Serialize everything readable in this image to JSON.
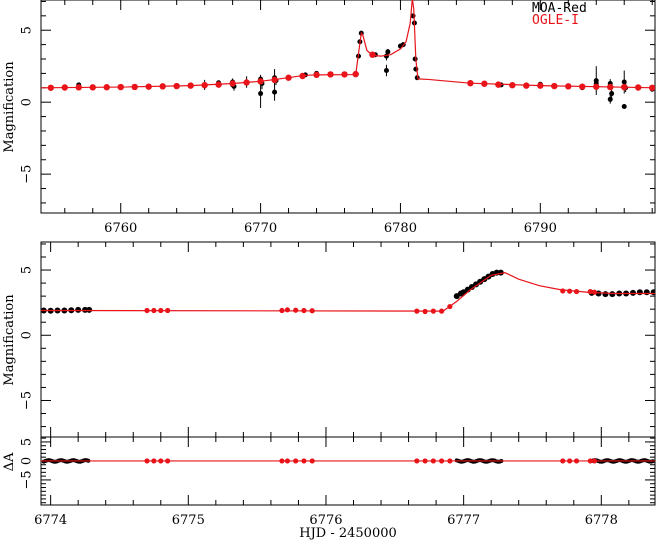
{
  "chart_data": [
    {
      "type": "scatter",
      "panel": "overview",
      "xlim": [
        6754.3,
        6798.2
      ],
      "ylim": [
        -7.7,
        7.1
      ],
      "ylabel": "Magnification",
      "xticks": [
        6760,
        6770,
        6780,
        6790
      ],
      "yticks": [
        -5,
        0,
        5
      ],
      "legend": {
        "placement": "top-right",
        "entries": [
          {
            "name": "MOA-Red",
            "color": "#000000"
          },
          {
            "name": "OGLE-I",
            "color": "#e8141a"
          }
        ]
      },
      "model": [
        [
          6754.3,
          1.0
        ],
        [
          6760,
          1.05
        ],
        [
          6765,
          1.15
        ],
        [
          6768,
          1.3
        ],
        [
          6770,
          1.45
        ],
        [
          6772,
          1.7
        ],
        [
          6773,
          1.85
        ],
        [
          6774,
          1.9
        ],
        [
          6776.8,
          1.92
        ],
        [
          6776.95,
          3.0
        ],
        [
          6777.2,
          4.8
        ],
        [
          6777.3,
          4.7
        ],
        [
          6777.6,
          3.6
        ],
        [
          6778,
          3.25
        ],
        [
          6778.6,
          3.2
        ],
        [
          6779.3,
          3.3
        ],
        [
          6780,
          3.7
        ],
        [
          6780.4,
          4.2
        ],
        [
          6780.7,
          5.5
        ],
        [
          6780.85,
          7.2
        ],
        [
          6780.95,
          6.5
        ],
        [
          6781.1,
          3.0
        ],
        [
          6781.25,
          1.62
        ],
        [
          6782,
          1.58
        ],
        [
          6785,
          1.32
        ],
        [
          6790,
          1.15
        ],
        [
          6798.2,
          1.0
        ]
      ],
      "ogle": [
        [
          6755,
          1.0
        ],
        [
          6756,
          1.02
        ],
        [
          6757,
          1.03
        ],
        [
          6758,
          1.03
        ],
        [
          6759,
          1.04
        ],
        [
          6760,
          1.05
        ],
        [
          6761,
          1.06
        ],
        [
          6762,
          1.08
        ],
        [
          6763,
          1.1
        ],
        [
          6764,
          1.12
        ],
        [
          6765,
          1.15
        ],
        [
          6766,
          1.18
        ],
        [
          6767,
          1.22
        ],
        [
          6768,
          1.3
        ],
        [
          6769,
          1.37
        ],
        [
          6770,
          1.45
        ],
        [
          6771,
          1.55
        ],
        [
          6772,
          1.7
        ],
        [
          6773,
          1.82
        ],
        [
          6774,
          1.9
        ],
        [
          6775,
          1.93
        ],
        [
          6776,
          1.93
        ],
        [
          6776.8,
          1.95
        ],
        [
          6778,
          3.3
        ],
        [
          6785,
          1.32
        ],
        [
          6786,
          1.28
        ],
        [
          6787,
          1.22
        ],
        [
          6788,
          1.18
        ],
        [
          6789,
          1.15
        ],
        [
          6790,
          1.15
        ],
        [
          6791,
          1.12
        ],
        [
          6792,
          1.1
        ],
        [
          6793,
          1.08
        ],
        [
          6794,
          1.07
        ],
        [
          6795,
          1.05
        ],
        [
          6796,
          1.05
        ],
        [
          6797,
          1.02
        ],
        [
          6798,
          1.0
        ]
      ],
      "moa": [
        [
          6756,
          1.05,
          0.1
        ],
        [
          6757,
          1.2,
          0.1
        ],
        [
          6766,
          1.2,
          0.35
        ],
        [
          6767,
          1.25,
          0.2
        ],
        [
          6767,
          1.35,
          0.15
        ],
        [
          6768,
          1.4,
          0.25
        ],
        [
          6768.1,
          1.1,
          0.3
        ],
        [
          6768,
          1.2,
          0.2
        ],
        [
          6769,
          1.4,
          0.4
        ],
        [
          6770,
          1.6,
          0.3
        ],
        [
          6770.1,
          1.3,
          0.4
        ],
        [
          6770,
          0.6,
          1.0
        ],
        [
          6771,
          1.7,
          0.6
        ],
        [
          6771,
          0.7,
          0.6
        ],
        [
          6771.1,
          1.5,
          0.3
        ],
        [
          6773.2,
          1.9,
          0.1
        ],
        [
          6774,
          2.0,
          0.1
        ],
        [
          6777,
          3.2,
          0.1
        ],
        [
          6777.1,
          4.2,
          0.15
        ],
        [
          6777.2,
          4.8,
          0.1
        ],
        [
          6778.2,
          3.3,
          0.1
        ],
        [
          6779,
          3.2,
          0.3
        ],
        [
          6779,
          2.2,
          0.4
        ],
        [
          6779.1,
          3.5,
          0.2
        ],
        [
          6780,
          3.9,
          0.15
        ],
        [
          6780.2,
          4.0,
          0.1
        ],
        [
          6780.9,
          6.0,
          0.1
        ],
        [
          6781,
          5.5,
          0.1
        ],
        [
          6781.05,
          3.0,
          0.1
        ],
        [
          6781.1,
          2.3,
          0.1
        ],
        [
          6781.2,
          1.7,
          0.1
        ],
        [
          6785,
          1.35,
          0.1
        ],
        [
          6787.2,
          1.2,
          0.1
        ],
        [
          6788,
          1.18,
          0.1
        ],
        [
          6790,
          1.25,
          0.1
        ],
        [
          6793,
          1.0,
          0.15
        ],
        [
          6794,
          1.5,
          1.0
        ],
        [
          6794,
          1.3,
          0.2
        ],
        [
          6795,
          1.3,
          0.3
        ],
        [
          6795,
          0.2,
          0.3
        ],
        [
          6795.1,
          0.6,
          0.4
        ],
        [
          6796,
          1.4,
          0.8
        ],
        [
          6796,
          -0.3,
          0.15
        ],
        [
          6796.1,
          1.0,
          0.3
        ],
        [
          6798,
          0.9,
          0.1
        ]
      ]
    },
    {
      "type": "scatter",
      "panel": "zoom",
      "xlim": [
        6773.93,
        6778.39
      ],
      "ylim": [
        -7.8,
        7.15
      ],
      "ylabel": "Magnification",
      "xticks": [
        6774,
        6775,
        6776,
        6777,
        6778
      ],
      "yticks": [
        -5,
        0,
        5
      ],
      "model": [
        [
          6773.93,
          1.9
        ],
        [
          6776.85,
          1.85
        ],
        [
          6776.95,
          2.6
        ],
        [
          6777.05,
          3.5
        ],
        [
          6777.2,
          4.6
        ],
        [
          6777.3,
          4.8
        ],
        [
          6777.4,
          4.3
        ],
        [
          6777.55,
          3.8
        ],
        [
          6777.7,
          3.5
        ],
        [
          6777.9,
          3.3
        ],
        [
          6778.1,
          3.2
        ],
        [
          6778.39,
          3.2
        ]
      ],
      "ogle": [
        [
          6774.7,
          1.9
        ],
        [
          6774.75,
          1.9
        ],
        [
          6774.8,
          1.9
        ],
        [
          6774.85,
          1.9
        ],
        [
          6775.68,
          1.9
        ],
        [
          6775.72,
          1.95
        ],
        [
          6775.78,
          1.92
        ],
        [
          6775.84,
          1.9
        ],
        [
          6775.9,
          1.88
        ],
        [
          6776.66,
          1.85
        ],
        [
          6776.72,
          1.82
        ],
        [
          6776.78,
          1.85
        ],
        [
          6776.84,
          1.85
        ],
        [
          6776.9,
          2.2
        ],
        [
          6777.72,
          3.4
        ],
        [
          6777.77,
          3.38
        ],
        [
          6777.82,
          3.35
        ],
        [
          6777.92,
          3.35
        ],
        [
          6777.95,
          3.3
        ]
      ],
      "moa": [
        [
          6773.95,
          1.9
        ],
        [
          6774.0,
          1.88
        ],
        [
          6774.05,
          1.9
        ],
        [
          6774.1,
          1.9
        ],
        [
          6774.15,
          1.92
        ],
        [
          6774.2,
          1.95
        ],
        [
          6774.25,
          1.95
        ],
        [
          6774.28,
          1.95
        ],
        [
          6776.95,
          3.0
        ],
        [
          6776.98,
          3.2
        ],
        [
          6777.0,
          3.3
        ],
        [
          6777.03,
          3.5
        ],
        [
          6777.06,
          3.7
        ],
        [
          6777.09,
          3.9
        ],
        [
          6777.12,
          4.1
        ],
        [
          6777.15,
          4.3
        ],
        [
          6777.18,
          4.5
        ],
        [
          6777.21,
          4.7
        ],
        [
          6777.24,
          4.8
        ],
        [
          6777.27,
          4.8
        ],
        [
          6777.93,
          3.25
        ],
        [
          6777.98,
          3.2
        ],
        [
          6778.03,
          3.15
        ],
        [
          6778.08,
          3.15
        ],
        [
          6778.13,
          3.2
        ],
        [
          6778.18,
          3.2
        ],
        [
          6778.23,
          3.25
        ],
        [
          6778.28,
          3.3
        ],
        [
          6778.33,
          3.3
        ],
        [
          6778.38,
          3.3
        ]
      ]
    },
    {
      "type": "scatter",
      "panel": "residuals",
      "xlim": [
        6773.93,
        6778.39
      ],
      "ylim": [
        -11.6,
        6.3
      ],
      "ylabel": "ΔA",
      "xlabel": "HJD - 2450000",
      "xticks": [
        6774,
        6775,
        6776,
        6777,
        6778
      ],
      "yticks": [
        -5,
        0,
        5
      ],
      "ogle_x": [
        6774.7,
        6774.75,
        6774.8,
        6774.85,
        6775.68,
        6775.72,
        6775.78,
        6775.84,
        6775.9,
        6776.66,
        6776.72,
        6776.78,
        6776.84,
        6776.9,
        6777.72,
        6777.77,
        6777.82,
        6777.92,
        6777.95
      ],
      "moa_segments": [
        [
          6773.95,
          6774.28
        ],
        [
          6776.95,
          6777.28
        ],
        [
          6777.93,
          6778.38
        ]
      ],
      "residual_value": 0
    }
  ]
}
